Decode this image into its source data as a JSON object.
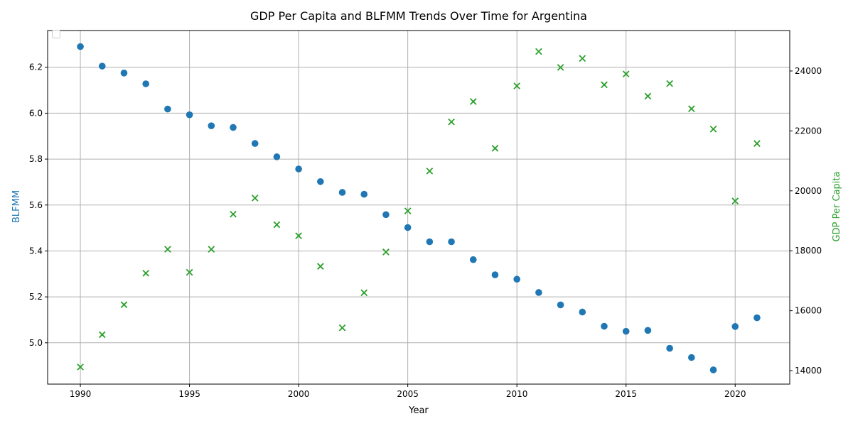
{
  "chart_data": {
    "type": "scatter",
    "title": "GDP Per Capita and BLFMM Trends Over Time for Argentina",
    "xlabel": "Year",
    "ylabel_left": "BLFMM",
    "ylabel_right": "GDP Per Capita",
    "xlim": [
      1988.5,
      2022.5
    ],
    "ylim_left": [
      4.82,
      6.36
    ],
    "ylim_right": [
      13550,
      25350
    ],
    "x_ticks": [
      1990,
      1995,
      2000,
      2005,
      2010,
      2015,
      2020
    ],
    "y_left_ticks": [
      "5.0",
      "5.2",
      "5.4",
      "5.6",
      "5.8",
      "6.0",
      "6.2"
    ],
    "y_right_ticks": [
      "14000",
      "16000",
      "18000",
      "20000",
      "22000",
      "24000"
    ],
    "grid": true,
    "legend": "top-left (empty)",
    "colors": {
      "blfmm": "#1f77b4",
      "gdp": "#2ca02c"
    },
    "years": [
      1990,
      1991,
      1992,
      1993,
      1994,
      1995,
      1996,
      1997,
      1998,
      1999,
      2000,
      2001,
      2002,
      2003,
      2004,
      2005,
      2006,
      2007,
      2008,
      2009,
      2010,
      2011,
      2012,
      2013,
      2014,
      2015,
      2016,
      2017,
      2018,
      2019,
      2020,
      2021
    ],
    "series": [
      {
        "axis": "left",
        "marker": "circle",
        "values": [
          6.29,
          6.205,
          6.175,
          6.128,
          6.018,
          5.993,
          5.945,
          5.938,
          5.868,
          5.81,
          5.757,
          5.702,
          5.655,
          5.647,
          5.558,
          5.502,
          5.44,
          5.44,
          5.362,
          5.296,
          5.277,
          5.219,
          5.165,
          5.134,
          5.072,
          5.05,
          5.054,
          4.976,
          4.936,
          4.882,
          5.071,
          5.109
        ]
      },
      {
        "axis": "right",
        "marker": "x",
        "values": [
          14120,
          15200,
          16200,
          17250,
          18050,
          17280,
          18050,
          19220,
          19760,
          18870,
          18500,
          17480,
          15430,
          16600,
          17960,
          19330,
          20660,
          22300,
          22980,
          21420,
          23500,
          24650,
          24120,
          24420,
          23540,
          23900,
          23160,
          23580,
          22740,
          22060,
          19660,
          21580
        ]
      }
    ]
  }
}
